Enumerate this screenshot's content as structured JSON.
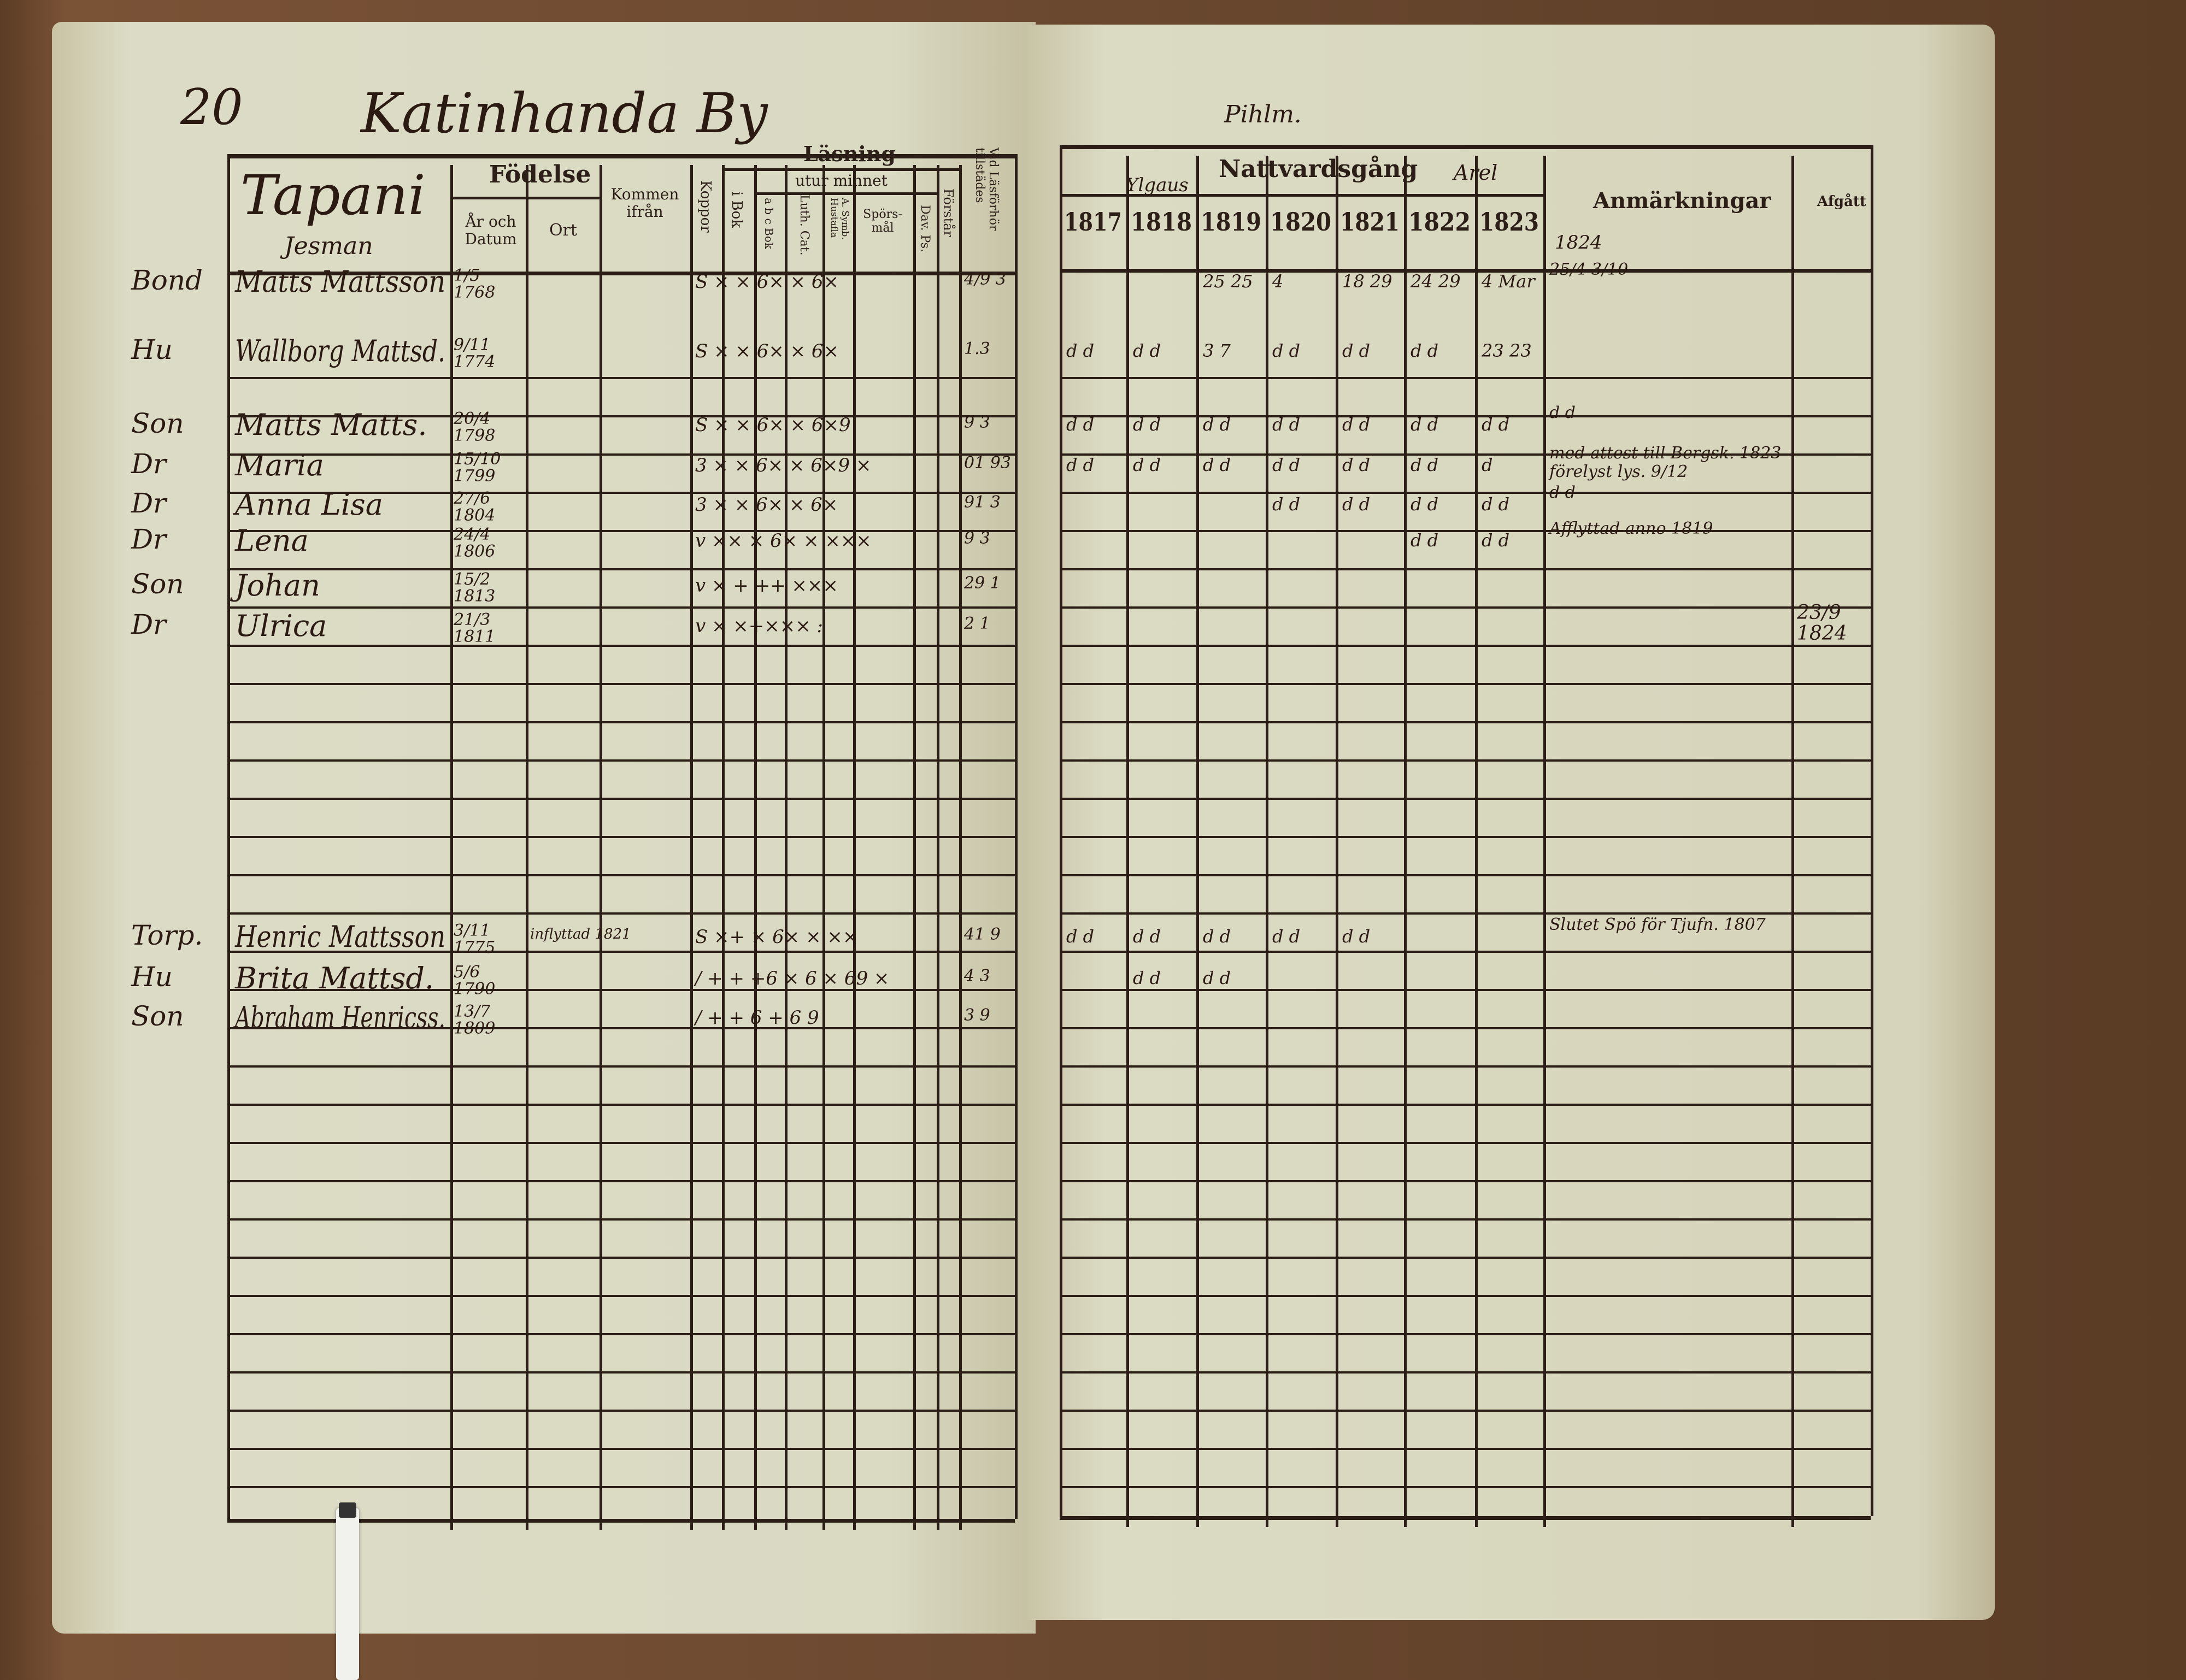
{
  "page_number": "20",
  "village": "Katinhanda By",
  "family_name": "Tapani",
  "family_sub": "Jesman",
  "right_top_note": "Pihlm.",
  "left_headers": {
    "fodelse": "Födelse",
    "ar_och_datum": "År och Datum",
    "ort": "Ort",
    "kommen_ifran": "Kommen ifrån",
    "koppor": "Koppor",
    "lasning": "Läsning",
    "utur_minnet": "utur minnet",
    "i_bok": "i Bok",
    "abc_bok": "a b c Bok",
    "luth_cat": "Luth. Cat.",
    "a_symb": "A. Symb. Hustafla",
    "sporsmal": "Spörs- mål",
    "dav_ps": "Dav. Ps.",
    "forstar": "Förstår",
    "vid_lasforhor": "Vid Läsförhör tillstädes"
  },
  "right_headers": {
    "nattvardsgang": "Nattvardsgång",
    "anmarkningar": "Anmärkningar",
    "afgatt": "Afgått",
    "years": [
      "1817",
      "1818",
      "1819",
      "1820",
      "1821",
      "1822",
      "1823"
    ],
    "year_1824": "1824",
    "note_left": "Ylgaus",
    "note_right": "Arel"
  },
  "entries": [
    {
      "role": "Bond",
      "name": "Matts Mattsson",
      "birth": "1/5 1768",
      "reading": "S × × 6× × 6×",
      "vid": "4/9 3",
      "communion": [
        "",
        "",
        "25 25",
        "4",
        "18 29",
        "24 29",
        "4 Mar"
      ],
      "remark": "25/4 3/10",
      "afgatt": ""
    },
    {
      "role": "Hu",
      "name": "Wallborg Mattsd.",
      "birth": "9/11 1774",
      "reading": "S × × 6× × 6×",
      "vid": "1.3",
      "communion": [
        "d d",
        "d d",
        "3 7",
        "d d",
        "d d",
        "d d",
        "23 23"
      ],
      "remark": "",
      "afgatt": ""
    },
    {
      "role": "Son",
      "name": "Matts Matts.",
      "birth": "20/4 1798",
      "reading": "S × × 6× × 6×9",
      "vid": "9 3",
      "communion": [
        "d d",
        "d d",
        "d d",
        "d d",
        "d d",
        "d d",
        "d d"
      ],
      "remark": "d d",
      "afgatt": ""
    },
    {
      "role": "Dr",
      "name": "Maria",
      "birth": "15/10 1799",
      "reading": "3 × × 6× × 6×9 ×",
      "vid": "01 93",
      "communion": [
        "d d",
        "d d",
        "d d",
        "d d",
        "d d",
        "d d",
        "d"
      ],
      "remark": "med attest till Bergsk. 1823 förelyst lys. 9/12",
      "afgatt": ""
    },
    {
      "role": "Dr",
      "name": "Anna Lisa",
      "birth": "27/6 1804",
      "reading": "3 × × 6× × 6×",
      "vid": "91 3",
      "communion": [
        "",
        "",
        "",
        "d d",
        "d d",
        "d d",
        "d d"
      ],
      "remark": "d d",
      "afgatt": ""
    },
    {
      "role": "Dr",
      "name": "Lena",
      "birth": "24/4 1806",
      "reading": "v ×× × 6× × ×××",
      "vid": "9 3",
      "communion": [
        "",
        "",
        "",
        "",
        "",
        "d d",
        "d d"
      ],
      "remark": "Afflyttad anno 1819",
      "afgatt": ""
    },
    {
      "role": "Son",
      "name": "Johan",
      "birth": "15/2 1813",
      "reading": "v × + ++ ×××",
      "vid": "29 1",
      "communion": [
        "",
        "",
        "",
        "",
        "",
        "",
        ""
      ],
      "remark": "",
      "afgatt": ""
    },
    {
      "role": "Dr",
      "name": "Ulrica",
      "birth": "21/3 1811",
      "reading": "v × ×+××× :",
      "vid": "2 1",
      "communion": [
        "",
        "",
        "",
        "",
        "",
        "",
        ""
      ],
      "remark": "",
      "afgatt": "23/9 1824"
    },
    {
      "role": "Torp.",
      "name": "Henric Mattsson",
      "birth": "3/11 1775",
      "from": "inflyttad 1821",
      "reading": "S ×+ × 6× × ××",
      "vid": "41 9",
      "communion": [
        "d d",
        "d d",
        "d d",
        "d d",
        "d d",
        "",
        ""
      ],
      "remark": "Slutet Spö för Tjufn. 1807",
      "afgatt": ""
    },
    {
      "role": "Hu",
      "name": "Brita Mattsd.",
      "birth": "5/6 1790",
      "reading": "/ + + +6 × 6 × 69 ×",
      "vid": "4 3",
      "communion": [
        "",
        "d d",
        "d d",
        "",
        "",
        "",
        ""
      ],
      "remark": "",
      "afgatt": ""
    },
    {
      "role": "Son",
      "name": "Abraham Henricss.",
      "birth": "13/7 1809",
      "reading": "/ + + 6 + 6   9",
      "vid": "3 9",
      "communion": [
        "",
        "",
        "",
        "",
        "",
        "",
        ""
      ],
      "remark": "",
      "afgatt": ""
    }
  ]
}
